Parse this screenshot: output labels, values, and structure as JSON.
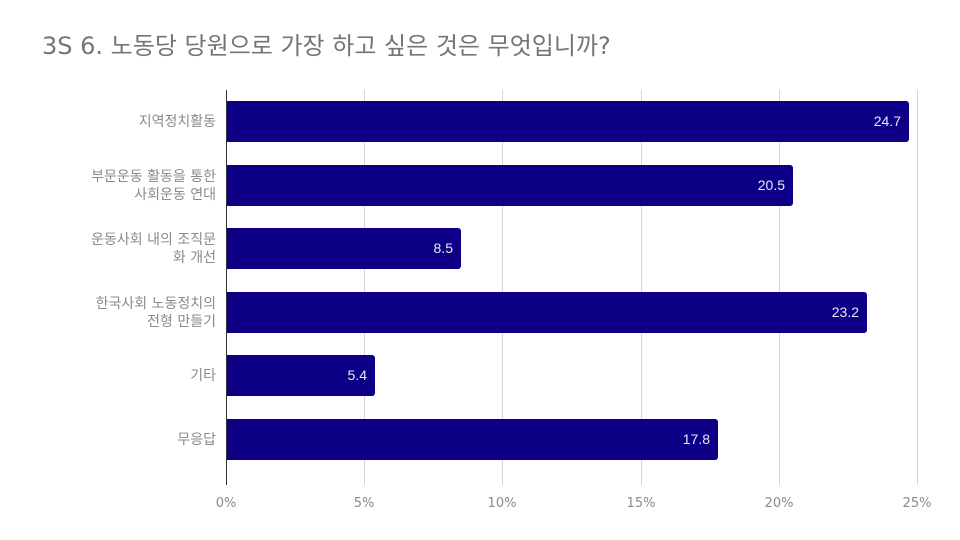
{
  "chart_data": {
    "type": "bar",
    "orientation": "horizontal",
    "title": "3S 6. 노동당 당원으로 가장 하고 싶은 것은 무엇입니까?",
    "xlabel": "",
    "ylabel": "",
    "categories": [
      "지역정치활동",
      "부문운동 활동을 통한 사회운동 연대",
      "운동사회 내의 조직문화 개선",
      "한국사회 노동정치의 전형 만들기",
      "기타",
      "무응답"
    ],
    "category_lines": [
      [
        "지역정치활동"
      ],
      [
        "부문운동 활동을 통한",
        "사회운동 연대"
      ],
      [
        "운동사회 내의 조직문",
        "화 개선"
      ],
      [
        "한국사회 노동정치의",
        "전형 만들기"
      ],
      [
        "기타"
      ],
      [
        "무응답"
      ]
    ],
    "values": [
      24.7,
      20.5,
      8.5,
      23.2,
      5.4,
      17.8
    ],
    "value_labels": [
      "24.7",
      "20.5",
      "8.5",
      "23.2",
      "5.4",
      "17.8"
    ],
    "xlim": [
      0,
      25
    ],
    "x_ticks": [
      "0%",
      "5%",
      "10%",
      "15%",
      "20%",
      "25%"
    ],
    "x_tick_values": [
      0,
      5,
      10,
      15,
      20,
      25
    ],
    "grid": true,
    "legend": null,
    "bar_color": "#0d0087"
  },
  "colors": {
    "bar": "#0d0087",
    "title": "#757575",
    "label": "#8a8a8a",
    "grid": "#d6d6d6",
    "value_text": "#e8e8f2"
  }
}
